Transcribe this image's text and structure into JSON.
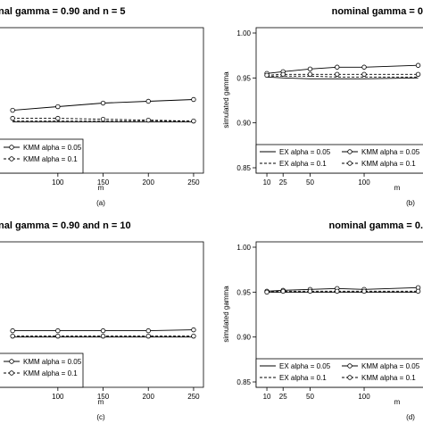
{
  "chart_data": [
    {
      "type": "line",
      "title": "nal gamma = 0.90 and n = 5",
      "xlabel": "m",
      "ylabel": "",
      "sublabel": "(a)",
      "x_ticks": [
        "100",
        "150",
        "200",
        "250"
      ],
      "x": [
        50,
        100,
        150,
        200,
        250
      ],
      "xlim": [
        40,
        255
      ],
      "ylim": [
        0.85,
        1.0
      ],
      "y_ticks": [],
      "series": [
        {
          "name": "",
          "style": "solid",
          "marker": "none",
          "values": [
            0.901,
            0.901,
            0.901,
            0.901,
            0.901
          ]
        },
        {
          "name": "",
          "style": "dashed",
          "marker": "none",
          "values": [
            0.902,
            0.902,
            0.902,
            0.902,
            0.902
          ]
        },
        {
          "name": "KMM alpha = 0.05",
          "style": "solid",
          "marker": "circle",
          "values": [
            0.914,
            0.918,
            0.922,
            0.924,
            0.926
          ]
        },
        {
          "name": "KMM alpha = 0.1",
          "style": "dashed",
          "marker": "circle",
          "values": [
            0.905,
            0.905,
            0.904,
            0.903,
            0.902
          ]
        }
      ],
      "legend": [
        "KMM alpha = 0.05",
        "KMM alpha = 0.1"
      ]
    },
    {
      "type": "line",
      "title": "nominal gamma = 0",
      "xlabel": "m",
      "ylabel": "simulated gamma",
      "sublabel": "(b)",
      "x_ticks": [
        "10",
        "25",
        "50",
        "100"
      ],
      "x": [
        10,
        25,
        50,
        75,
        100,
        150
      ],
      "xlim": [
        5,
        152
      ],
      "ylim": [
        0.85,
        1.0
      ],
      "y_ticks": [
        "0.85",
        "0.90",
        "0.95",
        "1.00"
      ],
      "series": [
        {
          "name": "EX alpha = 0.05",
          "style": "solid",
          "marker": "none",
          "values": [
            0.951,
            0.95,
            0.949,
            0.949,
            0.949,
            0.95
          ]
        },
        {
          "name": "EX alpha = 0.1",
          "style": "dashed",
          "marker": "none",
          "values": [
            0.952,
            0.952,
            0.952,
            0.951,
            0.951,
            0.951
          ]
        },
        {
          "name": "KMM alpha = 0.05",
          "style": "solid",
          "marker": "circle",
          "values": [
            0.955,
            0.957,
            0.96,
            0.962,
            0.962,
            0.964
          ]
        },
        {
          "name": "KMM alpha = 0.1",
          "style": "dashed",
          "marker": "circle",
          "values": [
            0.953,
            0.954,
            0.954,
            0.954,
            0.954,
            0.954
          ]
        }
      ],
      "legend": [
        "EX alpha = 0.05",
        "KMM alpha = 0.05",
        "EX alpha = 0.1",
        "KMM alpha = 0.1"
      ]
    },
    {
      "type": "line",
      "title": "nal gamma = 0.90 and n = 10",
      "xlabel": "m",
      "ylabel": "",
      "sublabel": "(c)",
      "x_ticks": [
        "100",
        "150",
        "200",
        "250"
      ],
      "x": [
        50,
        100,
        150,
        200,
        250
      ],
      "xlim": [
        40,
        255
      ],
      "ylim": [
        0.85,
        1.0
      ],
      "y_ticks": [],
      "series": [
        {
          "name": "",
          "style": "solid",
          "marker": "none",
          "values": [
            0.9,
            0.9,
            0.9,
            0.9,
            0.9
          ]
        },
        {
          "name": "",
          "style": "dashed",
          "marker": "none",
          "values": [
            0.901,
            0.901,
            0.901,
            0.901,
            0.901
          ]
        },
        {
          "name": "KMM alpha = 0.05",
          "style": "solid",
          "marker": "circle",
          "values": [
            0.907,
            0.907,
            0.907,
            0.907,
            0.908
          ]
        },
        {
          "name": "KMM alpha = 0.1",
          "style": "dashed",
          "marker": "circle",
          "values": [
            0.901,
            0.901,
            0.901,
            0.901,
            0.901
          ]
        }
      ],
      "legend": [
        "KMM alpha = 0.05",
        "KMM alpha = 0.1"
      ]
    },
    {
      "type": "line",
      "title": "nominal gamma = 0.",
      "xlabel": "m",
      "ylabel": "simulated gamma",
      "sublabel": "(d)",
      "x_ticks": [
        "10",
        "25",
        "50",
        "100"
      ],
      "x": [
        10,
        25,
        50,
        75,
        100,
        150
      ],
      "xlim": [
        5,
        152
      ],
      "ylim": [
        0.85,
        1.0
      ],
      "y_ticks": [
        "0.85",
        "0.90",
        "0.95",
        "1.00"
      ],
      "series": [
        {
          "name": "EX alpha = 0.05",
          "style": "solid",
          "marker": "none",
          "values": [
            0.95,
            0.95,
            0.95,
            0.95,
            0.95,
            0.95
          ]
        },
        {
          "name": "EX alpha = 0.1",
          "style": "dashed",
          "marker": "none",
          "values": [
            0.95,
            0.95,
            0.95,
            0.95,
            0.95,
            0.95
          ]
        },
        {
          "name": "KMM alpha = 0.05",
          "style": "solid",
          "marker": "circle",
          "values": [
            0.951,
            0.952,
            0.953,
            0.954,
            0.953,
            0.955
          ]
        },
        {
          "name": "KMM alpha = 0.1",
          "style": "dashed",
          "marker": "circle",
          "values": [
            0.95,
            0.951,
            0.951,
            0.951,
            0.951,
            0.951
          ]
        }
      ],
      "legend": [
        "EX alpha = 0.05",
        "KMM alpha = 0.05",
        "EX alpha = 0.1",
        "KMM alpha = 0.1"
      ]
    }
  ]
}
